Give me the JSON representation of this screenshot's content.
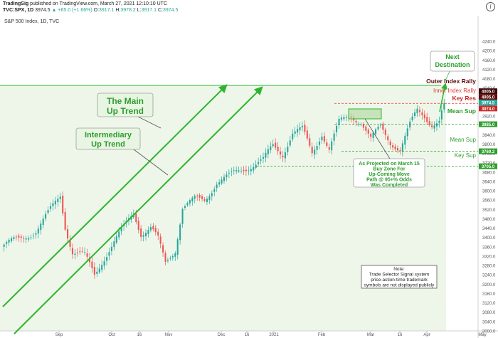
{
  "header": {
    "publisher": "TradingSig",
    "published_text": " published on TradingView.com, March 27, 2021 12:10:10 UTC",
    "symbol": "TVC:SPX, 1D",
    "last": "3974.5",
    "change": "+65.0 (+1.66%)",
    "ohlc_o_label": "O:",
    "ohlc_o": "3917.1",
    "ohlc_h_label": "H:",
    "ohlc_h": "3978.2",
    "ohlc_l_label": "L:",
    "ohlc_l": "3917.1",
    "ohlc_c_label": "C:",
    "ohlc_c": "3974.5",
    "info_icon": "info-icon"
  },
  "chart_data": {
    "type": "candlestick",
    "title": "S&P 500 Index, 1D, TVC",
    "ylim": [
      3000,
      4350
    ],
    "y_ticks": [
      3000,
      3040,
      3080,
      3120,
      3160,
      3200,
      3240,
      3280,
      3320,
      3360,
      3400,
      3440,
      3480,
      3520,
      3560,
      3600,
      3640,
      3680,
      3720,
      3760,
      3800,
      3840,
      3880,
      3920,
      3960,
      4000,
      4040,
      4080,
      4120,
      4160,
      4200,
      4240
    ],
    "x_ticks": [
      "Sep",
      "Oct",
      "16",
      "Nov",
      "Dec",
      "16",
      "2021",
      "Feb",
      "Mar",
      "16",
      "Apr",
      "May"
    ],
    "close_anchors": [
      {
        "t": 0,
        "c": 3370
      },
      {
        "t": 6,
        "c": 3390
      },
      {
        "t": 13,
        "c": 3430
      },
      {
        "t": 18,
        "c": 3500
      },
      {
        "t": 23,
        "c": 3580
      },
      {
        "t": 25,
        "c": 3450
      },
      {
        "t": 28,
        "c": 3340
      },
      {
        "t": 33,
        "c": 3320
      },
      {
        "t": 37,
        "c": 3240
      },
      {
        "t": 40,
        "c": 3300
      },
      {
        "t": 45,
        "c": 3380
      },
      {
        "t": 49,
        "c": 3440
      },
      {
        "t": 53,
        "c": 3510
      },
      {
        "t": 56,
        "c": 3420
      },
      {
        "t": 60,
        "c": 3440
      },
      {
        "t": 63,
        "c": 3390
      },
      {
        "t": 66,
        "c": 3290
      },
      {
        "t": 70,
        "c": 3350
      },
      {
        "t": 73,
        "c": 3530
      },
      {
        "t": 78,
        "c": 3560
      },
      {
        "t": 82,
        "c": 3560
      },
      {
        "t": 87,
        "c": 3640
      },
      {
        "t": 92,
        "c": 3660
      },
      {
        "t": 97,
        "c": 3690
      },
      {
        "t": 101,
        "c": 3710
      },
      {
        "t": 106,
        "c": 3730
      },
      {
        "t": 110,
        "c": 3790
      },
      {
        "t": 114,
        "c": 3760
      },
      {
        "t": 118,
        "c": 3850
      },
      {
        "t": 122,
        "c": 3860
      },
      {
        "t": 126,
        "c": 3760
      },
      {
        "t": 130,
        "c": 3850
      },
      {
        "t": 133,
        "c": 3780
      },
      {
        "t": 137,
        "c": 3890
      },
      {
        "t": 142,
        "c": 3920
      },
      {
        "t": 146,
        "c": 3900
      },
      {
        "t": 150,
        "c": 3820
      },
      {
        "t": 154,
        "c": 3870
      },
      {
        "t": 158,
        "c": 3810
      },
      {
        "t": 162,
        "c": 3780
      },
      {
        "t": 166,
        "c": 3880
      },
      {
        "t": 169,
        "c": 3940
      },
      {
        "t": 172,
        "c": 3920
      },
      {
        "t": 175,
        "c": 3890
      },
      {
        "t": 178,
        "c": 3900
      },
      {
        "t": 180,
        "c": 3974.5
      }
    ],
    "levels": [
      {
        "name": "Outer Index Rally",
        "value": 4005.0,
        "label": "4005.0",
        "color": "#5c0a0a"
      },
      {
        "name": "Inner Index Rally",
        "value": 3974.5,
        "label": "3974.5",
        "color": "#e53935"
      },
      {
        "name": "Key Res",
        "value": 3974.0,
        "label": "3974.0",
        "color": "#c62828"
      },
      {
        "name": "Mean Sup",
        "value": 3885.0,
        "label": "3885.0",
        "color": "#2e9e2e"
      },
      {
        "name": "Mean Sup",
        "value": 3769.2,
        "label": "3769.2",
        "color": "#2e9e2e"
      },
      {
        "name": "Key Sup",
        "value": 3705.0,
        "label": "3705.0",
        "color": "#2e9e2e"
      }
    ],
    "extra_price_tag": {
      "value": 4005.0,
      "label": "4005.0"
    }
  },
  "annotations": {
    "main_trend": [
      "The Main",
      "Up Trend"
    ],
    "intermediary_trend": [
      "Intermediary",
      "Up Trend"
    ],
    "next_destination": [
      "Next",
      "Destination"
    ],
    "outer_rally": "Outer Index Rally",
    "inner_rally": "Inner Index Rally",
    "key_res": "Key Res",
    "mean_sup_1": "Mean Sup",
    "mean_sup_2": "Mean Sup",
    "key_sup": "Key Sup",
    "projection": [
      "As Projected on March 15",
      "Buy Zone For",
      "Up-Coming Move",
      "Path @ 95+% Odds",
      "Was Completed"
    ],
    "note": [
      "Note:",
      "Trade Selector Signal system",
      "price-action-time-trademark",
      "symbols are not displayed publicly"
    ]
  },
  "colors": {
    "up": "#26a69a",
    "down": "#ef5350",
    "trend": "#2db52d",
    "shade": "#eef6ea"
  }
}
